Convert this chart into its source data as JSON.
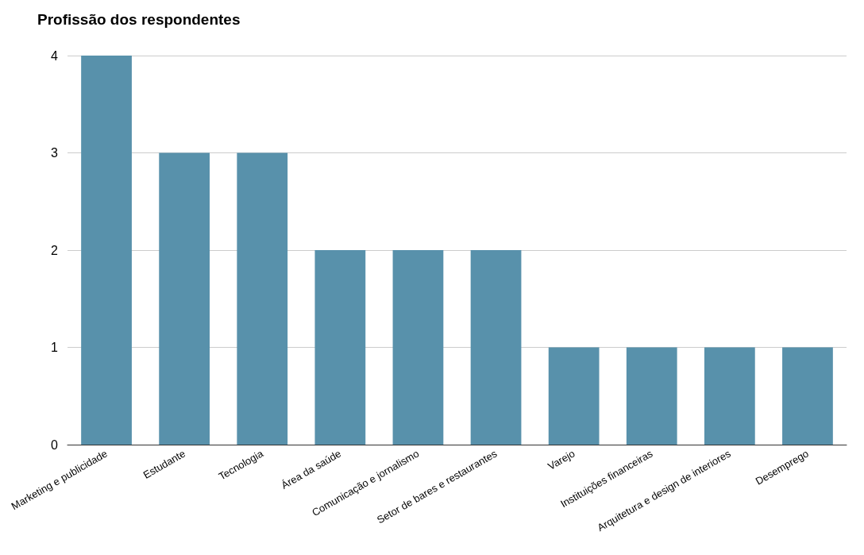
{
  "chart_data": {
    "type": "bar",
    "title": "Profissão dos respondentes",
    "categories": [
      "Marketing e publicidade",
      "Estudante",
      "Tecnologia",
      "Área da saúde",
      "Comunicação e jornalismo",
      "Setor de bares e restaurantes",
      "Varejo",
      "Instituições financeiras",
      "Arquitetura e design de interiores",
      "Desemprego"
    ],
    "values": [
      4,
      3,
      3,
      2,
      2,
      2,
      1,
      1,
      1,
      1
    ],
    "color": "#5891ab",
    "ylim": [
      0,
      4
    ],
    "yticks": [
      0,
      1,
      2,
      3,
      4
    ],
    "grid": "y"
  }
}
